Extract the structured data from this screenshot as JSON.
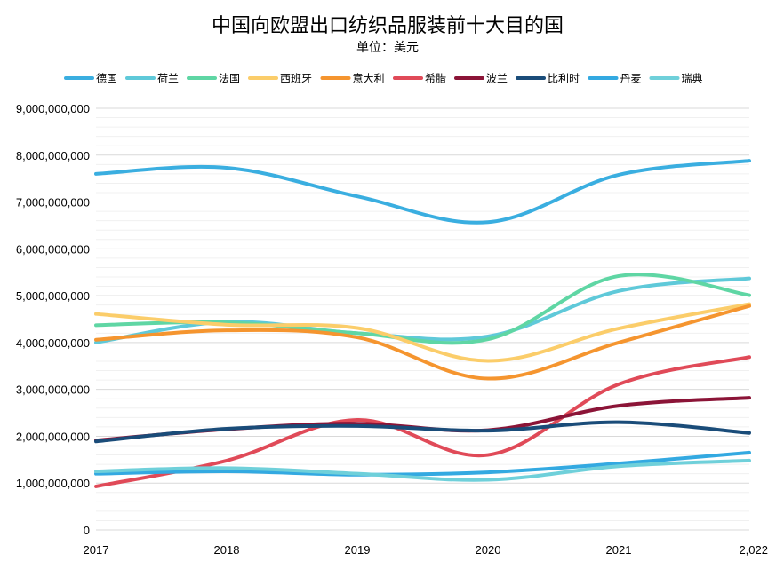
{
  "chart_data": {
    "type": "line",
    "title": "中国向欧盟出口纺织品服装前十大目的国",
    "subtitle": "单位：美元",
    "categories": [
      "2017",
      "2018",
      "2019",
      "2020",
      "2021",
      "2,022"
    ],
    "x": [
      2017,
      2018,
      2019,
      2020,
      2021,
      2022
    ],
    "ylim": [
      0,
      9000000000
    ],
    "yticks": [
      0,
      1000000000,
      2000000000,
      3000000000,
      4000000000,
      5000000000,
      6000000000,
      7000000000,
      8000000000,
      9000000000
    ],
    "ytick_labels": [
      "0",
      "1,000,000,000",
      "2,000,000,000",
      "3,000,000,000",
      "4,000,000,000",
      "5,000,000,000",
      "6,000,000,000",
      "7,000,000,000",
      "8,000,000,000",
      "9,000,000,000"
    ],
    "grid": true,
    "legend_position": "top",
    "series": [
      {
        "name": "德国",
        "color": "#3aaee0",
        "values": [
          7600000000,
          7730000000,
          7120000000,
          6570000000,
          7580000000,
          7880000000
        ]
      },
      {
        "name": "荷兰",
        "color": "#5fc9d9",
        "values": [
          4000000000,
          4440000000,
          4200000000,
          4130000000,
          5100000000,
          5370000000
        ]
      },
      {
        "name": "法国",
        "color": "#5fd6a4",
        "values": [
          4370000000,
          4430000000,
          4200000000,
          4070000000,
          5420000000,
          5010000000
        ]
      },
      {
        "name": "西班牙",
        "color": "#fbcd6a",
        "values": [
          4610000000,
          4380000000,
          4310000000,
          3610000000,
          4300000000,
          4820000000
        ]
      },
      {
        "name": "意大利",
        "color": "#f5952f",
        "values": [
          4060000000,
          4260000000,
          4110000000,
          3230000000,
          4000000000,
          4780000000
        ]
      },
      {
        "name": "希腊",
        "color": "#e04a58",
        "values": [
          930000000,
          1480000000,
          2350000000,
          1600000000,
          3110000000,
          3690000000
        ]
      },
      {
        "name": "波兰",
        "color": "#8b1437",
        "values": [
          1910000000,
          2150000000,
          2270000000,
          2130000000,
          2650000000,
          2820000000
        ]
      },
      {
        "name": "比利时",
        "color": "#1a4c79",
        "values": [
          1890000000,
          2160000000,
          2220000000,
          2120000000,
          2300000000,
          2070000000
        ]
      },
      {
        "name": "丹麦",
        "color": "#33a9e1",
        "values": [
          1200000000,
          1250000000,
          1180000000,
          1230000000,
          1420000000,
          1650000000
        ]
      },
      {
        "name": "瑞典",
        "color": "#6fd0da",
        "values": [
          1250000000,
          1320000000,
          1200000000,
          1070000000,
          1360000000,
          1480000000
        ]
      }
    ]
  }
}
